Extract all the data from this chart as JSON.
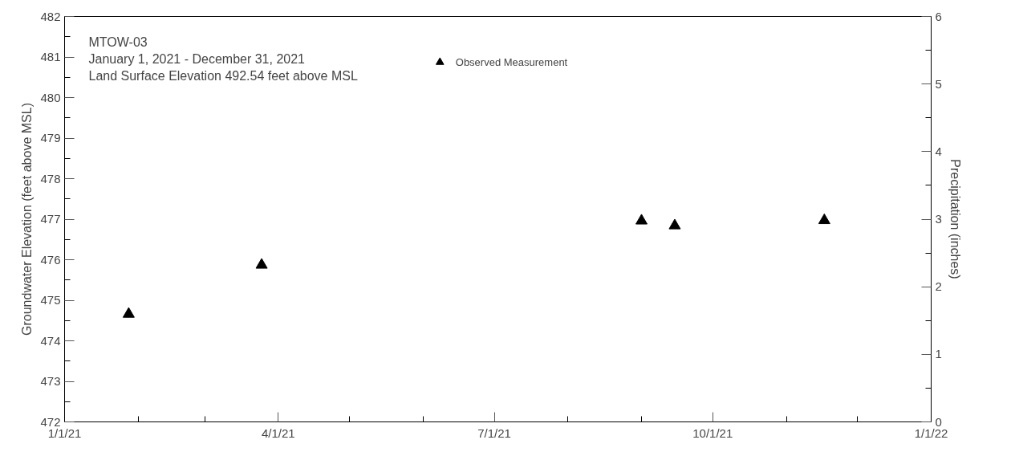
{
  "chart_data": {
    "type": "scatter",
    "annotations": [
      "MTOW-03",
      "January 1, 2021 - December 31, 2021",
      "Land Surface Elevation 492.54 feet above MSL"
    ],
    "ylabel": "Groundwater Elevation (feet above MSL)",
    "y2label": "Precipitation (inches)",
    "x": [
      "2021-01-28",
      "2021-03-25",
      "2021-09-01",
      "2021-09-15",
      "2021-11-17"
    ],
    "series": [
      {
        "name": "Observed Measurement",
        "color": "#000000",
        "values": [
          474.66,
          475.87,
          476.96,
          476.84,
          476.97
        ]
      }
    ],
    "marker": "triangle",
    "legend": "top",
    "grid": false,
    "xlim": [
      "2021-01-01",
      "2022-01-01"
    ],
    "xticks": [
      {
        "value": "2021-01-01",
        "label": "1/1/21"
      },
      {
        "value": "2021-02-01",
        "label": null
      },
      {
        "value": "2021-03-01",
        "label": null
      },
      {
        "value": "2021-04-01",
        "label": "4/1/21"
      },
      {
        "value": "2021-05-01",
        "label": null
      },
      {
        "value": "2021-06-01",
        "label": null
      },
      {
        "value": "2021-07-01",
        "label": "7/1/21"
      },
      {
        "value": "2021-08-01",
        "label": null
      },
      {
        "value": "2021-09-01",
        "label": null
      },
      {
        "value": "2021-10-01",
        "label": "10/1/21"
      },
      {
        "value": "2021-11-01",
        "label": null
      },
      {
        "value": "2021-12-01",
        "label": null
      },
      {
        "value": "2022-01-01",
        "label": "1/1/22"
      }
    ],
    "ylim": [
      472,
      482
    ],
    "yticks": [
      472,
      {
        "value": 472.5,
        "label": null
      },
      473,
      {
        "value": 473.5,
        "label": null
      },
      474,
      {
        "value": 474.5,
        "label": null
      },
      475,
      {
        "value": 475.5,
        "label": null
      },
      476,
      {
        "value": 476.5,
        "label": null
      },
      477,
      {
        "value": 477.5,
        "label": null
      },
      478,
      {
        "value": 478.5,
        "label": null
      },
      479,
      {
        "value": 479.5,
        "label": null
      },
      480,
      {
        "value": 480.5,
        "label": null
      },
      481,
      {
        "value": 481.5,
        "label": null
      },
      482
    ],
    "y2lim": [
      0,
      6
    ],
    "y2ticks": [
      0,
      {
        "value": 0.5,
        "label": null
      },
      1,
      {
        "value": 1.5,
        "label": null
      },
      2,
      {
        "value": 2.5,
        "label": null
      },
      3,
      {
        "value": 3.5,
        "label": null
      },
      4,
      {
        "value": 4.5,
        "label": null
      },
      5,
      {
        "value": 5.5,
        "label": null
      },
      6
    ]
  }
}
